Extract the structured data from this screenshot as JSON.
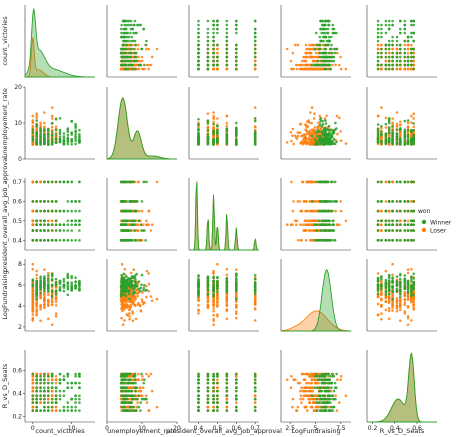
{
  "chart_data": {
    "type": "scatter",
    "variables": [
      "count_victories",
      "unemployement_rate",
      "president_overall_avg_job_approval",
      "LogFundraising",
      "R_vs_D_Seats"
    ],
    "ranges": {
      "count_victories": [
        -2,
        16
      ],
      "unemployement_rate": [
        0,
        20
      ],
      "president_overall_avg_job_approval": [
        0.35,
        0.72
      ],
      "LogFundraising": [
        1.6,
        8.5
      ],
      "R_vs_D_Seats": [
        0.15,
        0.78
      ]
    },
    "xticks": {
      "count_victories": [
        0,
        10
      ],
      "unemployement_rate": [
        0,
        10,
        20
      ],
      "president_overall_avg_job_approval": [
        0.4,
        0.5,
        0.6,
        0.7
      ],
      "LogFundraising": [
        2.5,
        5.0,
        7.5
      ],
      "R_vs_D_Seats": [
        0.2,
        0.4,
        0.6
      ]
    },
    "yticks": {
      "count_victories": [],
      "unemployement_rate": [
        0,
        10,
        20
      ],
      "president_overall_avg_job_approval": [
        0.4,
        0.5,
        0.6,
        0.7
      ],
      "LogFundraising": [
        2,
        4,
        6,
        8
      ],
      "R_vs_D_Seats": [
        0.2,
        0.4,
        0.6
      ]
    },
    "legend": {
      "title": "won",
      "placement": "right",
      "entries": [
        {
          "label": "Winner",
          "color": "#2ca02c"
        },
        {
          "label": "Loser",
          "color": "#ff7f0e"
        }
      ]
    },
    "colors": {
      "Winner": "#2ca02c",
      "Loser": "#ff7f0e",
      "overlap": "#b8a338"
    },
    "diagonal": "kde",
    "grid": false
  }
}
